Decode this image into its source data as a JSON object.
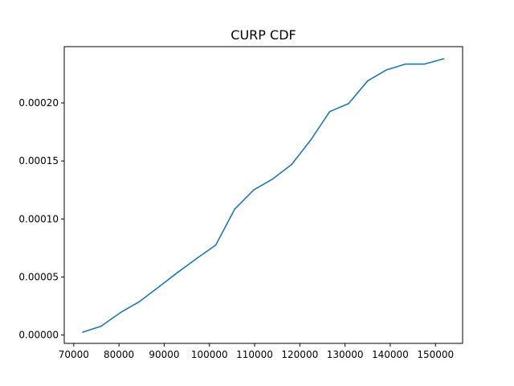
{
  "chart_data": {
    "type": "line",
    "title": "CURP CDF",
    "xlabel": "",
    "ylabel": "",
    "xlim": [
      67900,
      156000
    ],
    "ylim": [
      -7.2e-06,
      0.0002485
    ],
    "grid": false,
    "xticks": [
      70000,
      80000,
      90000,
      100000,
      110000,
      120000,
      130000,
      140000,
      150000
    ],
    "xtick_labels": [
      "70000",
      "80000",
      "90000",
      "100000",
      "110000",
      "120000",
      "130000",
      "140000",
      "150000"
    ],
    "yticks": [
      0,
      5e-05,
      0.0001,
      0.00015,
      0.0002
    ],
    "ytick_labels": [
      "0.00000",
      "0.00005",
      "0.00010",
      "0.00015",
      "0.00020"
    ],
    "series": [
      {
        "color": "#1f77b4",
        "x": [
          72000,
          76000,
          80400,
          84600,
          89000,
          93000,
          97200,
          101400,
          105600,
          109800,
          114000,
          118200,
          122400,
          126600,
          130800,
          135000,
          139200,
          143400,
          147600,
          151800
        ],
        "y": [
          2.5e-06,
          7.5e-06,
          1.95e-05,
          2.9e-05,
          4.2e-05,
          5.4e-05,
          6.6e-05,
          7.75e-05,
          0.0001085,
          0.000125,
          0.0001345,
          0.000147,
          0.000168,
          0.0001925,
          0.0001995,
          0.000219,
          0.0002285,
          0.0002335,
          0.0002335,
          0.000238
        ]
      }
    ]
  }
}
